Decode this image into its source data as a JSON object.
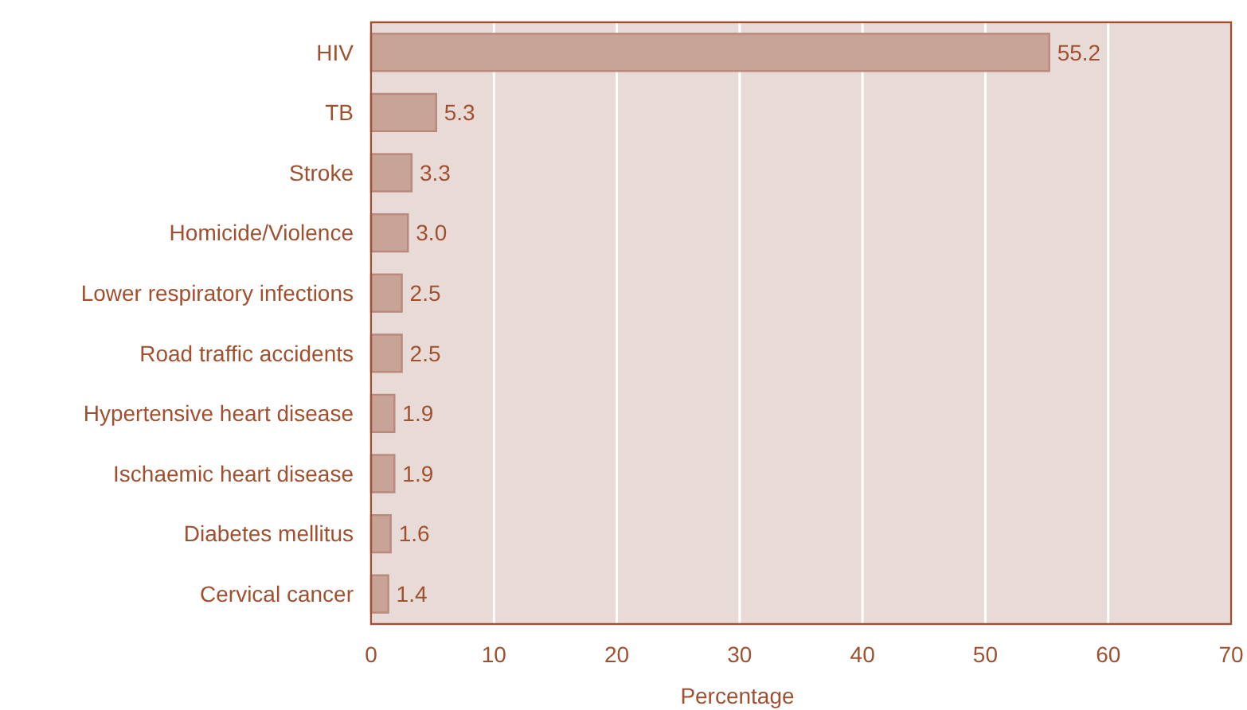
{
  "chart_data": {
    "type": "bar",
    "orientation": "horizontal",
    "xlabel": "Percentage",
    "categories": [
      "HIV",
      "TB",
      "Stroke",
      "Homicide/Violence",
      "Lower respiratory infections",
      "Road traffic accidents",
      "Hypertensive heart disease",
      "Ischaemic heart disease",
      "Diabetes mellitus",
      "Cervical cancer"
    ],
    "values": [
      55.2,
      5.3,
      3.3,
      3.0,
      2.5,
      2.5,
      1.9,
      1.9,
      1.6,
      1.4
    ],
    "value_labels": [
      "55.2",
      "5.3",
      "3.3",
      "3.0",
      "2.5",
      "2.5",
      "1.9",
      "1.9",
      "1.6",
      "1.4"
    ],
    "color": "#c8a398",
    "xlim": [
      0,
      70
    ],
    "xticks": [
      0,
      10,
      20,
      30,
      40,
      50,
      60,
      70
    ],
    "grid": "x"
  }
}
